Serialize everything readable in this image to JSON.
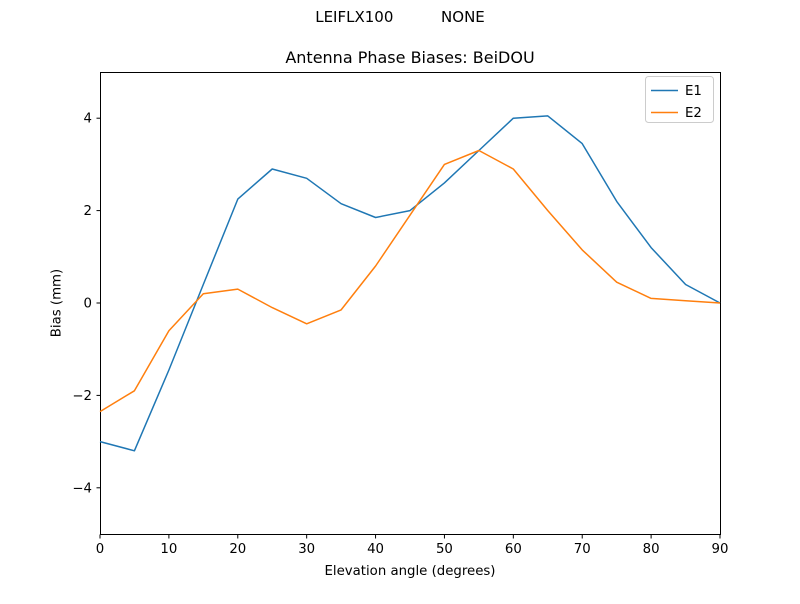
{
  "figure": {
    "suptitle": "LEIFLX100          NONE",
    "title": "Antenna Phase Biases: BeiDOU"
  },
  "chart_data": {
    "type": "line",
    "suptitle": "LEIFLX100          NONE",
    "title": "Antenna Phase Biases: BeiDOU",
    "xlabel": "Elevation angle (degrees)",
    "ylabel": "Bias (mm)",
    "xlim": [
      0,
      90
    ],
    "ylim": [
      -5,
      5
    ],
    "xticks": [
      0,
      10,
      20,
      30,
      40,
      50,
      60,
      70,
      80,
      90
    ],
    "yticks": [
      -4,
      -2,
      0,
      2,
      4
    ],
    "grid": false,
    "legend_position": "upper right",
    "background_color": "#ffffff",
    "x": [
      0,
      5,
      10,
      15,
      20,
      25,
      30,
      35,
      40,
      45,
      50,
      55,
      60,
      65,
      70,
      75,
      80,
      85,
      90
    ],
    "series": [
      {
        "name": "E1",
        "color": "#1f77b4",
        "values": [
          -3.0,
          -3.2,
          -1.45,
          0.4,
          2.25,
          2.9,
          2.7,
          2.15,
          1.85,
          2.0,
          2.6,
          3.3,
          4.0,
          4.05,
          3.45,
          2.2,
          1.2,
          0.4,
          0.0
        ]
      },
      {
        "name": "E2",
        "color": "#ff7f0e",
        "values": [
          -2.35,
          -1.9,
          -0.6,
          0.2,
          0.3,
          -0.1,
          -0.45,
          -0.15,
          0.8,
          1.9,
          3.0,
          3.3,
          2.9,
          2.0,
          1.15,
          0.45,
          0.1,
          0.05,
          0.0
        ]
      }
    ]
  }
}
